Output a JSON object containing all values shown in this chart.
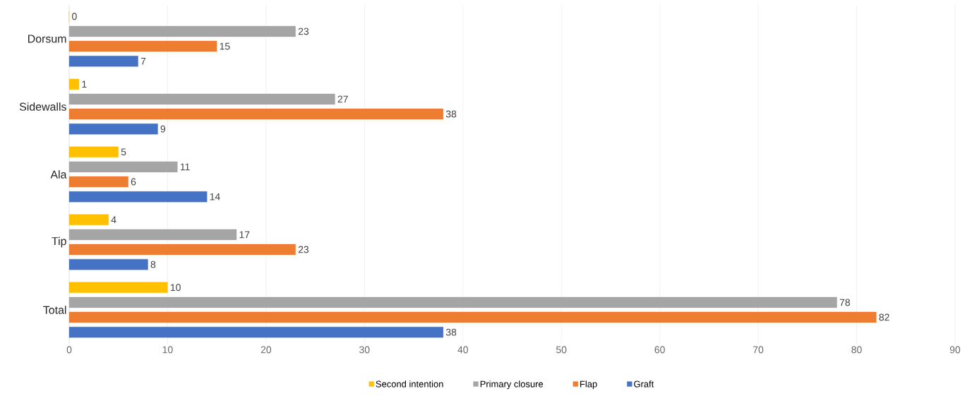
{
  "chart_data": {
    "type": "bar",
    "orientation": "horizontal",
    "categories": [
      "Dorsum",
      "Sidewalls",
      "Ala",
      "Tip",
      "Total"
    ],
    "series": [
      {
        "name": "Second intention",
        "color": "#ffc000",
        "values": [
          0,
          1,
          5,
          4,
          10
        ]
      },
      {
        "name": "Primary closure",
        "color": "#a5a5a5",
        "values": [
          23,
          27,
          11,
          17,
          78
        ]
      },
      {
        "name": "Flap",
        "color": "#ed7d31",
        "values": [
          15,
          38,
          6,
          23,
          82
        ]
      },
      {
        "name": "Graft",
        "color": "#4472c4",
        "values": [
          7,
          9,
          14,
          8,
          38
        ]
      }
    ],
    "xlim": [
      0,
      90
    ],
    "xticks": [
      0,
      10,
      20,
      30,
      40,
      50,
      60,
      70,
      80,
      90
    ],
    "grid": "x",
    "legend": "bottom",
    "data_labels": true
  }
}
